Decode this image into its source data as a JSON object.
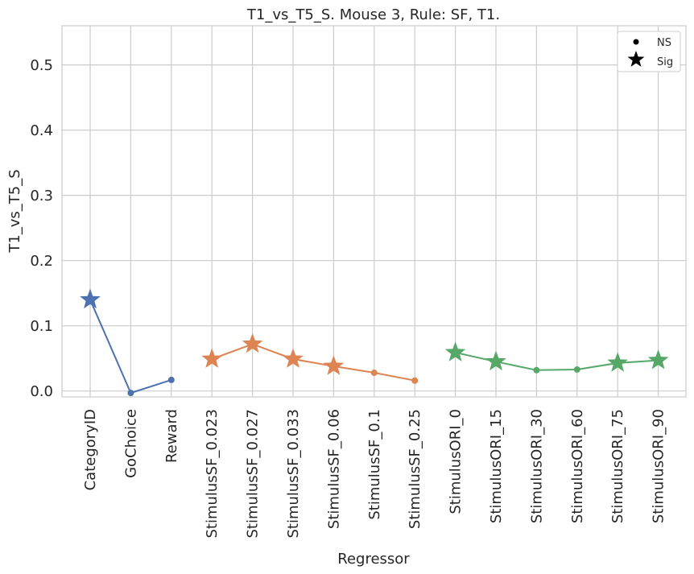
{
  "chart_data": {
    "type": "line",
    "title": "T1_vs_T5_S. Mouse 3, Rule: SF, T1.",
    "xlabel": "Regressor",
    "ylabel": "T1_vs_T5_S",
    "ylim": [
      -0.009,
      0.56
    ],
    "yticks": [
      "0.0",
      "0.1",
      "0.2",
      "0.3",
      "0.4",
      "0.5"
    ],
    "ytick_values": [
      0,
      0.1,
      0.2,
      0.3,
      0.4,
      0.5
    ],
    "grid": true,
    "legend_placement": "top-right",
    "legend": [
      {
        "label": "NS",
        "marker": "dot"
      },
      {
        "label": "Sig",
        "marker": "star"
      }
    ],
    "categories": [
      "CategoryID",
      "GoChoice",
      "Reward",
      "StimulusSF_0.023",
      "StimulusSF_0.027",
      "StimulusSF_0.033",
      "StimulusSF_0.06",
      "StimulusSF_0.1",
      "StimulusSF_0.25",
      "StimulusORI_0",
      "StimulusORI_15",
      "StimulusORI_30",
      "StimulusORI_60",
      "StimulusORI_75",
      "StimulusORI_90"
    ],
    "series": [
      {
        "color": "#4c72b0",
        "points": [
          {
            "x": "CategoryID",
            "y": 0.14,
            "sig": true
          },
          {
            "x": "GoChoice",
            "y": -0.003,
            "sig": false
          },
          {
            "x": "Reward",
            "y": 0.017,
            "sig": false
          }
        ]
      },
      {
        "color": "#dd8452",
        "points": [
          {
            "x": "StimulusSF_0.023",
            "y": 0.049,
            "sig": true
          },
          {
            "x": "StimulusSF_0.027",
            "y": 0.072,
            "sig": true
          },
          {
            "x": "StimulusSF_0.033",
            "y": 0.049,
            "sig": true
          },
          {
            "x": "StimulusSF_0.06",
            "y": 0.038,
            "sig": true
          },
          {
            "x": "StimulusSF_0.1",
            "y": 0.028,
            "sig": false
          },
          {
            "x": "StimulusSF_0.25",
            "y": 0.016,
            "sig": false
          }
        ]
      },
      {
        "color": "#55a868",
        "points": [
          {
            "x": "StimulusORI_0",
            "y": 0.059,
            "sig": true
          },
          {
            "x": "StimulusORI_15",
            "y": 0.045,
            "sig": true
          },
          {
            "x": "StimulusORI_30",
            "y": 0.032,
            "sig": false
          },
          {
            "x": "StimulusORI_60",
            "y": 0.033,
            "sig": false
          },
          {
            "x": "StimulusORI_75",
            "y": 0.043,
            "sig": true
          },
          {
            "x": "StimulusORI_90",
            "y": 0.047,
            "sig": true
          }
        ]
      }
    ]
  }
}
